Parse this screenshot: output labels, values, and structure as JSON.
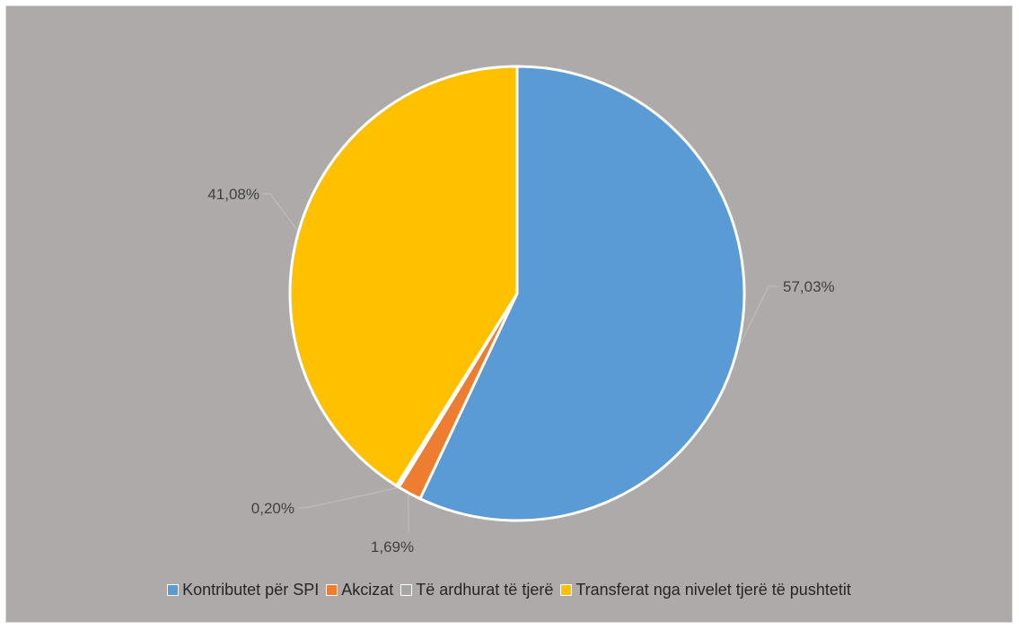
{
  "chart_data": {
    "type": "pie",
    "title": "",
    "slices": [
      {
        "label": "Kontributet për SPI",
        "value": 57.03,
        "value_label": "57,03%",
        "color": "#5b9bd5"
      },
      {
        "label": "Akcizat",
        "value": 1.69,
        "value_label": "1,69%",
        "color": "#ed7d31"
      },
      {
        "label": "Të ardhurat të tjerë",
        "value": 0.2,
        "value_label": "0,20%",
        "color": "#a5a5a5"
      },
      {
        "label": "Transferat nga nivelet tjerë të pushtetit",
        "value": 41.08,
        "value_label": "41,08%",
        "color": "#ffc000"
      }
    ],
    "legend_position": "bottom",
    "background": "#aeaaaa"
  }
}
